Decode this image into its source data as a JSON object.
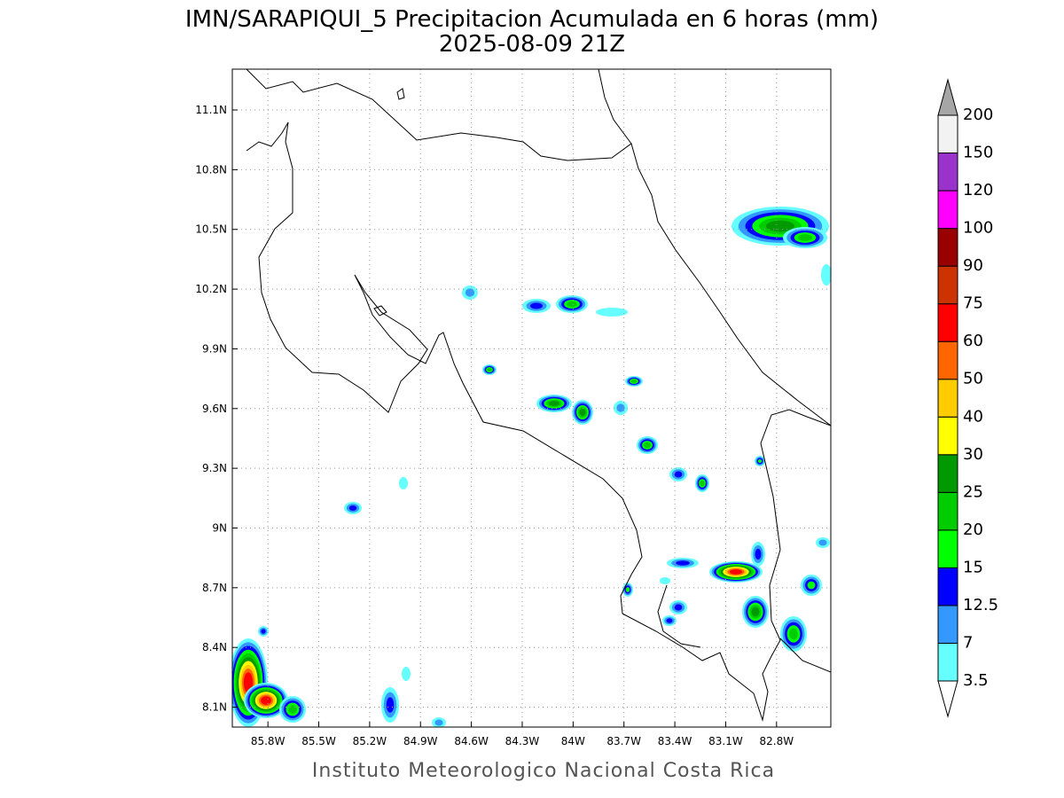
{
  "title": "IMN/SARAPIQUI_5 Precipitacion Acumulada en 6 horas (mm)",
  "subtitle": "2025-08-09 21Z",
  "map": {
    "lonlim": [
      -86.01,
      -82.48
    ],
    "latlim": [
      8.0,
      11.305
    ],
    "lon_ticks": [
      {
        "value": -85.8,
        "label": "85.8W"
      },
      {
        "value": -85.5,
        "label": "85.5W"
      },
      {
        "value": -85.2,
        "label": "85.2W"
      },
      {
        "value": -84.9,
        "label": "84.9W"
      },
      {
        "value": -84.6,
        "label": "84.6W"
      },
      {
        "value": -84.3,
        "label": "84.3W"
      },
      {
        "value": -84.0,
        "label": "84W"
      },
      {
        "value": -83.7,
        "label": "83.7W"
      },
      {
        "value": -83.4,
        "label": "83.4W"
      },
      {
        "value": -83.1,
        "label": "83.1W"
      },
      {
        "value": -82.8,
        "label": "82.8W"
      }
    ],
    "lat_ticks": [
      {
        "value": 8.1,
        "label": "8.1N"
      },
      {
        "value": 8.4,
        "label": "8.4N"
      },
      {
        "value": 8.7,
        "label": "8.7N"
      },
      {
        "value": 9.0,
        "label": "9N"
      },
      {
        "value": 9.3,
        "label": "9.3N"
      },
      {
        "value": 9.6,
        "label": "9.6N"
      },
      {
        "value": 9.9,
        "label": "9.9N"
      },
      {
        "value": 10.2,
        "label": "10.2N"
      },
      {
        "value": 10.5,
        "label": "10.5N"
      },
      {
        "value": 10.8,
        "label": "10.8N"
      },
      {
        "value": 11.1,
        "label": "11.1N"
      }
    ],
    "grid": true
  },
  "colorbar": {
    "levels": [
      3.5,
      7,
      12.5,
      15,
      20,
      25,
      30,
      40,
      50,
      60,
      75,
      90,
      100,
      120,
      150,
      200
    ],
    "colors": [
      "#66ffff",
      "#3399ff",
      "#0000ff",
      "#00ff00",
      "#00cc00",
      "#009900",
      "#ffff00",
      "#ffcc00",
      "#ff6600",
      "#ff0000",
      "#cc3300",
      "#990000",
      "#ff00ff",
      "#9933cc",
      "#f2f2f2"
    ],
    "under_color": "#ffffff",
    "over_color": "#a6a6a6"
  },
  "footer": "Instituto Meteorologico Nacional Costa Rica"
}
